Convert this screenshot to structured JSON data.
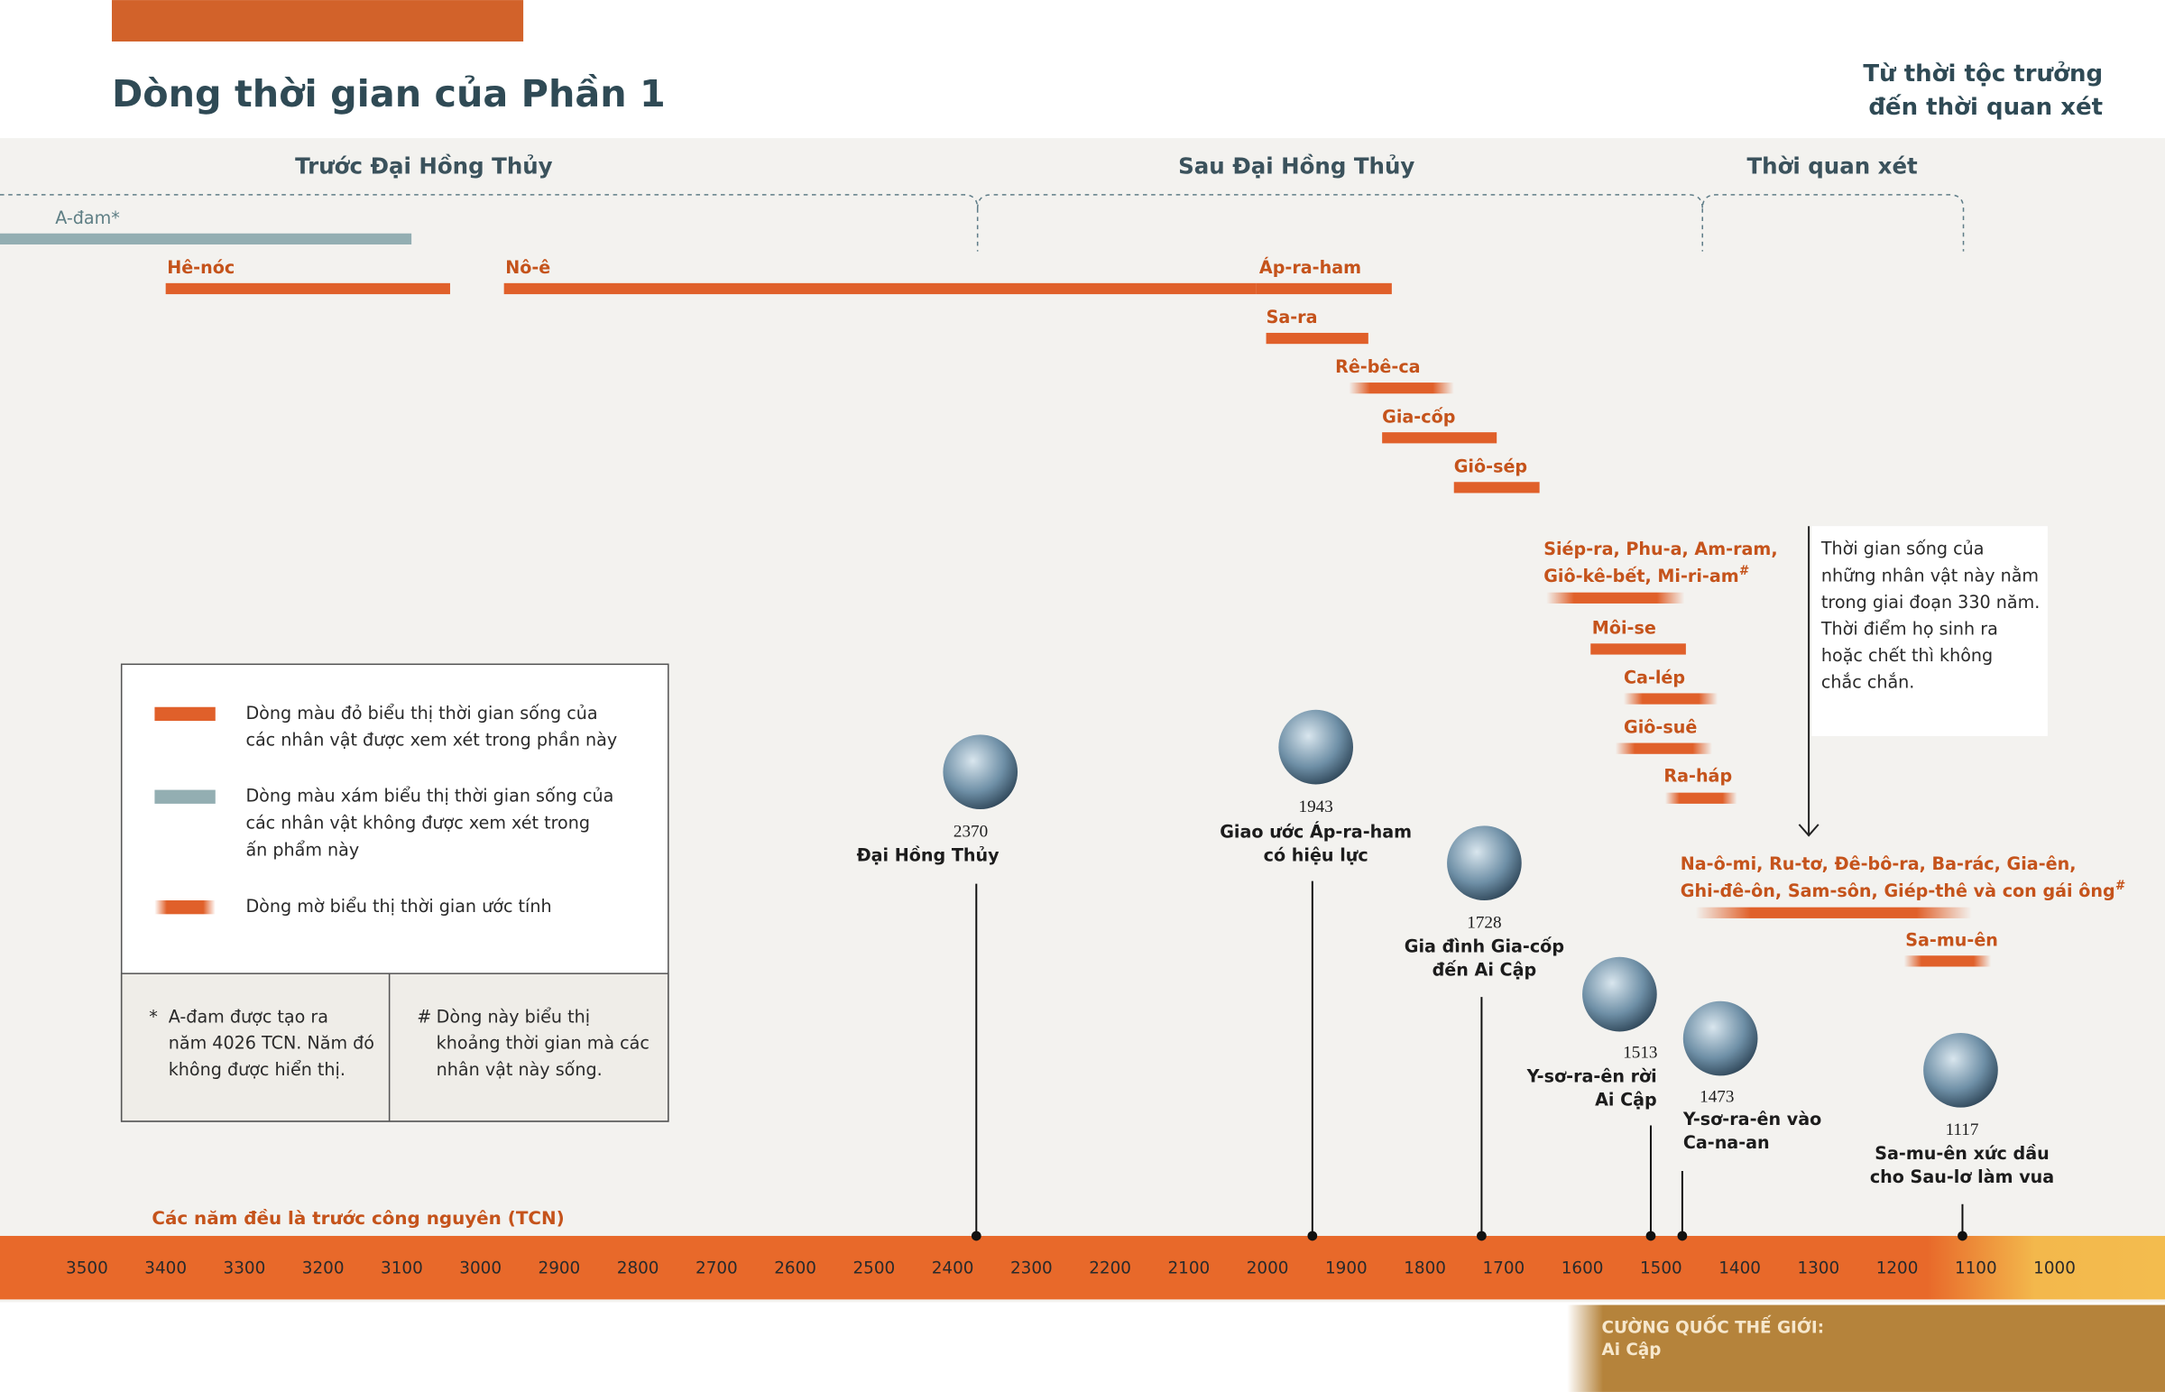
{
  "header": {
    "title": "Dòng thời gian của Phần 1",
    "subtitle_lines": [
      "Từ thời tộc trưởng",
      "đến thời quan xét"
    ]
  },
  "periods": [
    "Trước Đại Hồng Thủy",
    "Sau Đại Hồng Thủy",
    "Thời quan xét"
  ],
  "lifespans": [
    {
      "kind": "gray",
      "lines": [
        "A-đam*"
      ]
    },
    {
      "kind": "red",
      "lines": [
        "Hê-nóc"
      ]
    },
    {
      "kind": "red",
      "lines": [
        "Nô-ê"
      ]
    },
    {
      "kind": "red",
      "lines": [
        "Áp-ra-ham"
      ]
    },
    {
      "kind": "red",
      "lines": [
        "Sa-ra"
      ]
    },
    {
      "kind": "faded",
      "lines": [
        "Rê-bê-ca"
      ]
    },
    {
      "kind": "red",
      "lines": [
        "Gia-cốp"
      ]
    },
    {
      "kind": "red",
      "lines": [
        "Giô-sép"
      ]
    },
    {
      "kind": "faded",
      "lines": [
        "Siép-ra, Phu-a, Am-ram,",
        "Giô-kê-bết, Mi-ri-am"
      ],
      "mark": "#"
    },
    {
      "kind": "red",
      "lines": [
        "Môi-se"
      ]
    },
    {
      "kind": "faded",
      "lines": [
        "Ca-lép"
      ]
    },
    {
      "kind": "faded",
      "lines": [
        "Giô-suê"
      ]
    },
    {
      "kind": "faded",
      "lines": [
        "Ra-háp"
      ]
    },
    {
      "kind": "faded",
      "lines": [
        "Na-ô-mi, Ru-tơ, Đê-bô-ra, Ba-rác, Gia-ên,",
        "Ghi-đê-ôn, Sam-sôn, Giép-thê và con gái ông"
      ],
      "mark": "#"
    },
    {
      "kind": "faded",
      "lines": [
        "Sa-mu-ên"
      ]
    }
  ],
  "note_lines": [
    "Thời gian sống của",
    "những nhân vật này nằm",
    "trong giai đoạn 330 năm.",
    "Thời điểm họ sinh ra",
    "hoặc chết thì không",
    "chắc chắn."
  ],
  "legend": [
    {
      "kind": "red",
      "lines": [
        "Dòng màu đỏ biểu thị thời gian sống của",
        "các nhân vật được xem xét trong phần này"
      ]
    },
    {
      "kind": "gray",
      "lines": [
        "Dòng màu xám biểu thị thời gian sống của",
        "các nhân vật không được xem xét trong",
        "ấn phẩm này"
      ]
    },
    {
      "kind": "faded",
      "lines": [
        "Dòng mờ biểu thị thời gian ước tính"
      ]
    }
  ],
  "footnotes": [
    {
      "mark": "*",
      "lines": [
        "A-đam được tạo ra",
        "năm 4026 TCN. Năm đó",
        "không được hiển thị."
      ]
    },
    {
      "mark": "#",
      "lines": [
        "Dòng này biểu thị",
        "khoảng thời gian mà các",
        "nhân vật này sống."
      ]
    }
  ],
  "events": [
    {
      "year": 2370,
      "lines": [
        "Đại Hồng Thủy"
      ]
    },
    {
      "year": 1943,
      "lines": [
        "Giao ước Áp-ra-ham",
        "có hiệu lực"
      ]
    },
    {
      "year": 1728,
      "lines": [
        "Gia đình Gia-cốp",
        "đến Ai Cập"
      ]
    },
    {
      "year": 1513,
      "lines": [
        "Y-sơ-ra-ên rời",
        "Ai Cập"
      ]
    },
    {
      "year": 1473,
      "lines": [
        "Y-sơ-ra-ên vào",
        "Ca-na-an"
      ]
    },
    {
      "year": 1117,
      "lines": [
        "Sa-mu-ên xức dầu",
        "cho Sau-lơ làm vua"
      ]
    }
  ],
  "axis": {
    "note": "Các năm đều là trước công nguyên (TCN)",
    "ticks": [
      3500,
      3400,
      3300,
      3200,
      3100,
      3000,
      2900,
      2800,
      2700,
      2600,
      2500,
      2400,
      2300,
      2200,
      2100,
      2000,
      1900,
      1800,
      1700,
      1600,
      1500,
      1400,
      1300,
      1200,
      1100,
      1000
    ]
  },
  "world_power": {
    "label": "CƯỜNG QUỐC THẾ GIỚI:",
    "name": "Ai Cập"
  }
}
